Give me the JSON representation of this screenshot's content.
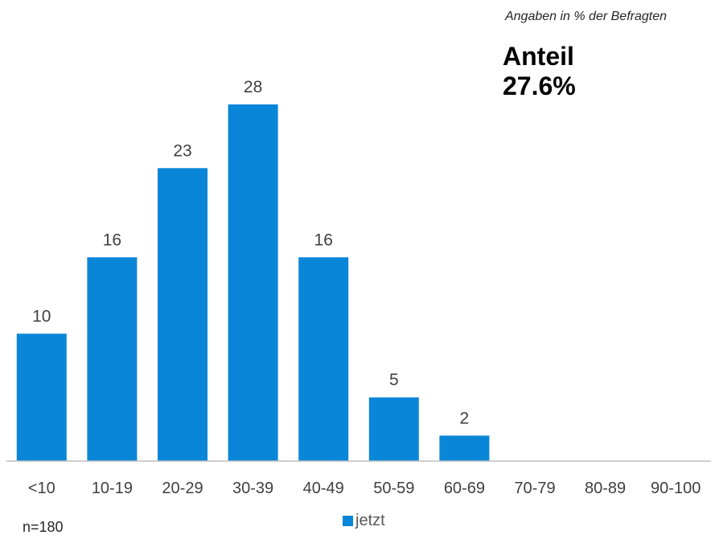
{
  "note": "Angaben in % der Befragten",
  "share": {
    "label": "Anteil",
    "value": "27.6%"
  },
  "sample_size": "n=180",
  "colors": {
    "bar": "#0a86d8",
    "axis": "#bfbfbf"
  },
  "chart_data": {
    "type": "bar",
    "categories": [
      "<10",
      "10-19",
      "20-29",
      "30-39",
      "40-49",
      "50-59",
      "60-69",
      "70-79",
      "80-89",
      "90-100"
    ],
    "series": [
      {
        "name": "jetzt",
        "values": [
          10,
          16,
          23,
          28,
          16,
          5,
          2,
          0,
          0,
          0
        ],
        "data_labels": [
          "10",
          "16",
          "23",
          "28",
          "16",
          "5",
          "2",
          "",
          "",
          ""
        ]
      }
    ],
    "ylim": [
      0,
      30
    ],
    "grid": false,
    "legend_position": "bottom"
  }
}
